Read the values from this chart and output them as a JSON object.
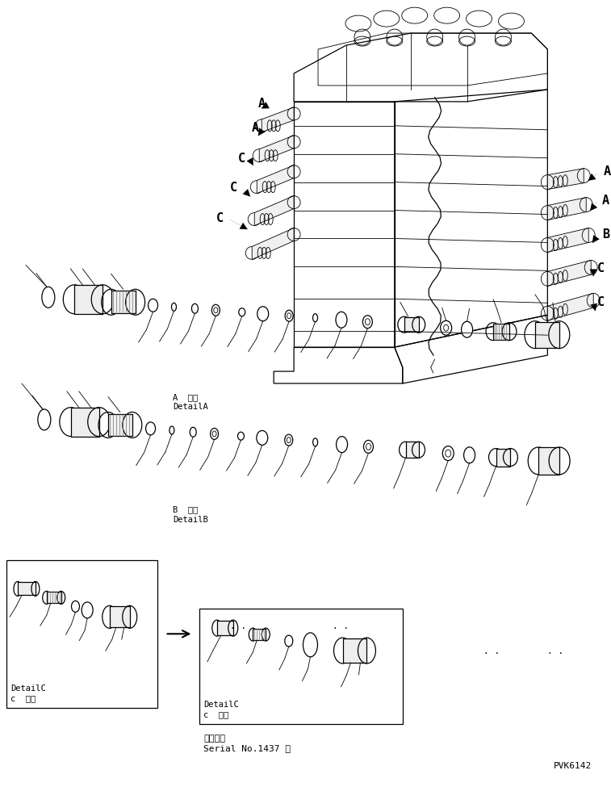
{
  "background_color": "#ffffff",
  "line_color": "#000000",
  "text_color": "#000000",
  "detail_a_jp": "A  詳細",
  "detail_a_en": "DetailA",
  "detail_b_jp": "B  詳細",
  "detail_b_en": "DetailB",
  "bottom_left_label_jp": "c  詳細",
  "bottom_left_label_en": "DetailC",
  "bottom_center_label_jp": "c  詳細",
  "bottom_center_label_en": "DetailC",
  "serial_jp": "適用号機",
  "serial_en": "Serial No.1437 ～",
  "pvk": "PVK6142",
  "left_labels": [
    "A",
    "A",
    "C",
    "C",
    "C"
  ],
  "right_labels": [
    "A",
    "A",
    "B",
    "C",
    "C"
  ],
  "dots_text1": ". .",
  "dots_text2": ". .",
  "dots_text3": ". .",
  "dots_text4": ". ."
}
